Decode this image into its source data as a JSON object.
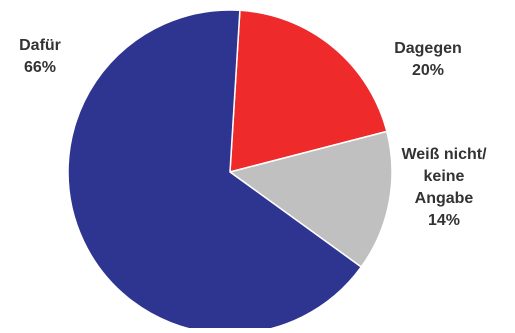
{
  "chart_data": {
    "type": "pie",
    "title": "",
    "slices": [
      {
        "label_lines": [
          "Dagegen",
          "20%"
        ],
        "value": 20,
        "color": "#ee2a2a"
      },
      {
        "label_lines": [
          "Weiß nicht/",
          "keine",
          "Angabe",
          "14%"
        ],
        "value": 14,
        "color": "#c0c0c0"
      },
      {
        "label_lines": [
          "Dafür",
          "66%"
        ],
        "value": 66,
        "color": "#2e3590"
      }
    ],
    "legend": "none"
  }
}
